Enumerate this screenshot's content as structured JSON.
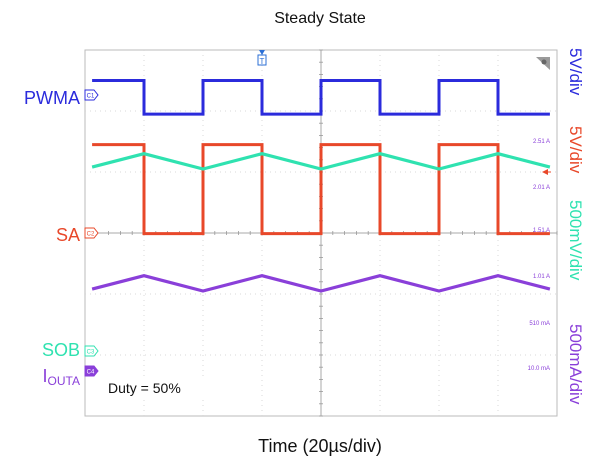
{
  "title": "Steady State",
  "xlabel": "Time (20µs/div)",
  "annotation": "Duty = 50%",
  "channels": {
    "pwma": {
      "label": "PWMA",
      "scale": "5V/div",
      "color": "#2b2bdc",
      "marker": "C1"
    },
    "sa": {
      "label": "SA",
      "scale": "5V/div",
      "color": "#e8482a",
      "marker": "C2"
    },
    "sob": {
      "label": "SOB",
      "scale": "500mV/div",
      "color": "#2fe2b0",
      "marker": "C3"
    },
    "iouta": {
      "label_main": "I",
      "label_sub": "OUTA",
      "scale": "500mA/div",
      "color": "#8a3fd9",
      "marker": "C4"
    }
  },
  "current_scale_labels": [
    "2.51 A",
    "2.01 A",
    "1.51 A",
    "1.01 A",
    "510 mA",
    "10.0 mA"
  ],
  "trigger_marker": "T",
  "chart_data": {
    "type": "line",
    "title": "Steady State",
    "xlabel": "Time (20µs/div)",
    "x_divisions": 8,
    "y_divisions": 6,
    "grid": true,
    "series": [
      {
        "name": "PWMA",
        "scale": "5V/div",
        "kind": "square",
        "period_div": 2.0,
        "duty": 0.5,
        "phase_div": 0.0,
        "high_div": 5.5,
        "low_div": 4.95
      },
      {
        "name": "SA",
        "scale": "5V/div",
        "kind": "square",
        "period_div": 2.0,
        "duty": 0.5,
        "phase_div": 0.0,
        "high_div": 4.45,
        "low_div": 2.99
      },
      {
        "name": "SOB",
        "scale": "500mV/div",
        "kind": "triangle",
        "period_div": 2.0,
        "phase_div": 0.0,
        "peak_div": 4.3,
        "valley_div": 4.05
      },
      {
        "name": "IOUTA",
        "scale": "500mA/div",
        "kind": "triangle",
        "period_div": 2.0,
        "phase_div": 0.0,
        "peak_div": 2.3,
        "valley_div": 2.05
      }
    ]
  }
}
